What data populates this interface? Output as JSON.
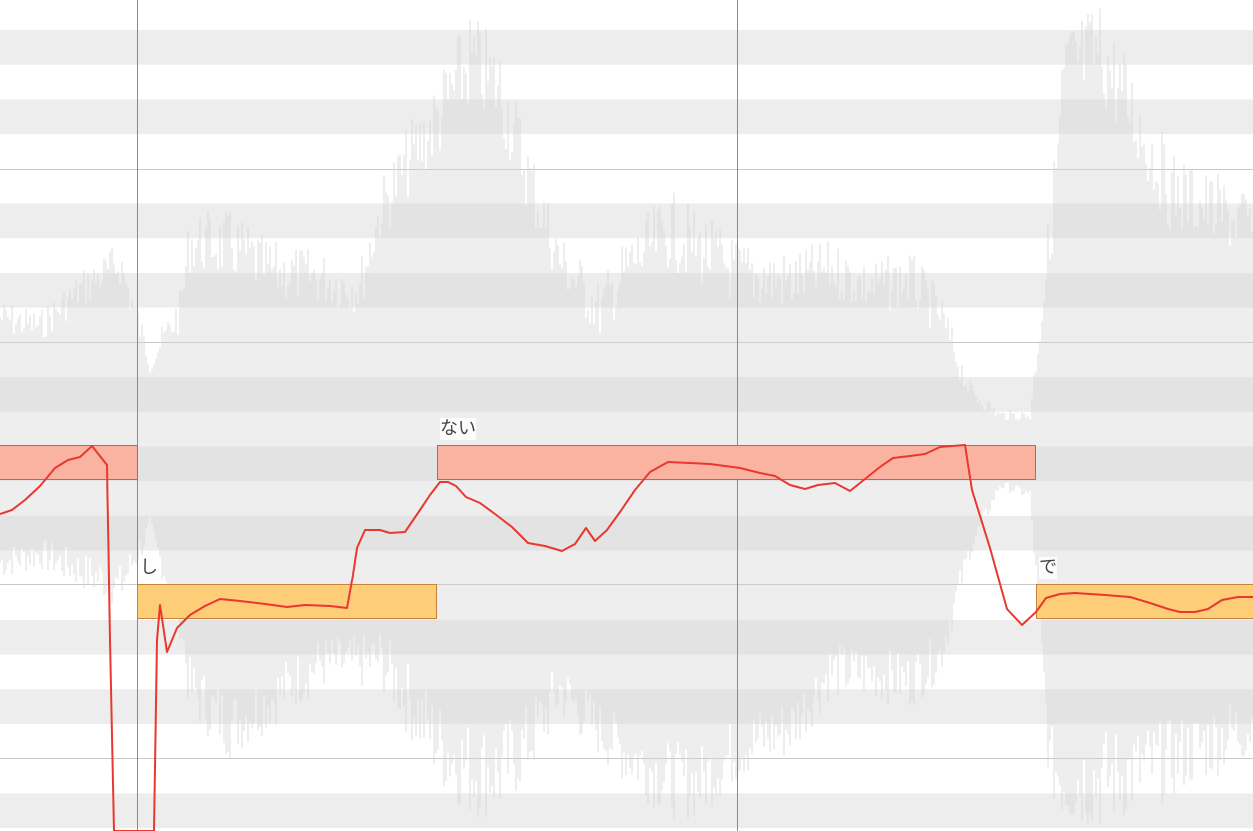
{
  "colors": {
    "row_shade": "#ededed",
    "grid_line": "#c8c8c8",
    "bar_line": "#8a8a8a",
    "waveform": "#d2d2d2",
    "note_high_fill": "#fbb3a1",
    "note_high_border": "#c8634a",
    "note_low_fill": "#fdcd78",
    "note_low_border": "#c9813c",
    "pitch_curve": "#e8382f"
  },
  "notes": [
    {
      "id": "note-1",
      "lyric": "",
      "pitch": "high"
    },
    {
      "id": "note-2",
      "lyric": "し",
      "pitch": "low"
    },
    {
      "id": "note-3",
      "lyric": "ない",
      "pitch": "high"
    },
    {
      "id": "note-4",
      "lyric": "で",
      "pitch": "low"
    }
  ]
}
